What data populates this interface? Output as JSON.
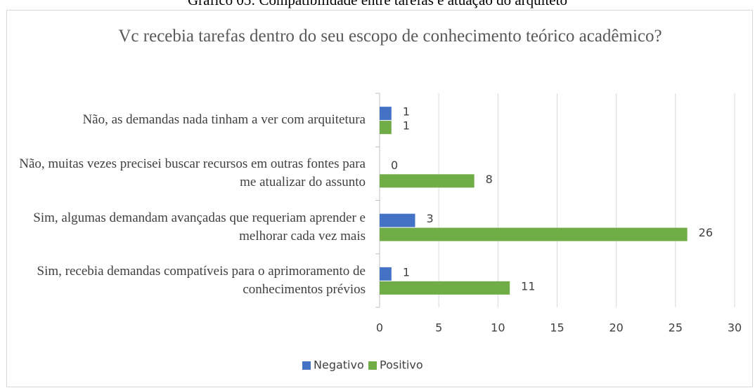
{
  "caption": "Gráfico 05: Compatibilidade entre tarefas e atuação do arquiteto",
  "chart_data": {
    "type": "hbar",
    "title": "Vc recebia tarefas dentro do seu escopo de conhecimento teórico acadêmico?",
    "categories": [
      "Não, as demandas nada tinham a ver com arquitetura",
      "Não, muitas vezes precisei buscar recursos em outras fontes para me atualizar do assunto",
      "Sim, algumas demandam avançadas que requeriam aprender e melhorar cada vez mais",
      "Sim, recebia demandas compatíveis para o aprimoramento de conhecimentos prévios"
    ],
    "series": [
      {
        "name": "Negativo",
        "color": "#4472c4",
        "values": [
          1,
          0,
          3,
          1
        ]
      },
      {
        "name": "Positivo",
        "color": "#70ad47",
        "values": [
          1,
          8,
          26,
          11
        ]
      }
    ],
    "xlim": [
      0,
      30
    ],
    "xticks": [
      0,
      5,
      10,
      15,
      20,
      25,
      30
    ],
    "grid": true,
    "legend": "bottom"
  }
}
